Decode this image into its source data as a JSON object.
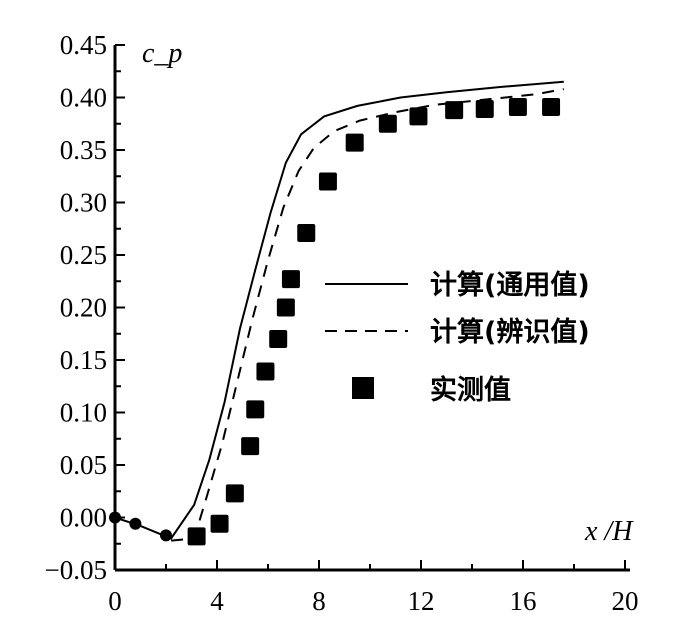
{
  "chart_data": {
    "type": "line",
    "title": "",
    "xlabel": "x /H",
    "ylabel": "c_p",
    "xlim": [
      0,
      20
    ],
    "ylim": [
      -0.05,
      0.45
    ],
    "x_ticks": [
      "0",
      "4",
      "8",
      "12",
      "16",
      "20"
    ],
    "y_ticks": [
      "0.45",
      "0.40",
      "0.35",
      "0.30",
      "0.25",
      "0.20",
      "0.15",
      "0.10",
      "0.05",
      "0.00",
      "−0.05"
    ],
    "grid": false,
    "legend_position": "center-right",
    "series": [
      {
        "name": "计算(通用值)",
        "style": "solid",
        "x": [
          0,
          1,
          2.2,
          3.1,
          3.7,
          4.3,
          4.9,
          5.5,
          6.1,
          6.7,
          7.3,
          8.2,
          9.5,
          11.2,
          13,
          15.1,
          17.6
        ],
        "y": [
          0,
          -0.008,
          -0.02,
          0.012,
          0.055,
          0.11,
          0.18,
          0.236,
          0.29,
          0.338,
          0.365,
          0.382,
          0.392,
          0.4,
          0.405,
          0.41,
          0.415
        ]
      },
      {
        "name": "计算(辨识值)",
        "style": "dashed",
        "x": [
          2.2,
          3.1,
          3.6,
          4.2,
          4.8,
          5.4,
          6.0,
          6.6,
          7.2,
          7.8,
          8.6,
          9.6,
          11,
          12.5,
          14.5,
          16.5,
          17.6
        ],
        "y": [
          -0.022,
          -0.02,
          0.02,
          0.07,
          0.13,
          0.19,
          0.245,
          0.295,
          0.33,
          0.352,
          0.368,
          0.378,
          0.386,
          0.393,
          0.398,
          0.403,
          0.408
        ]
      },
      {
        "name": "实测值",
        "style": "markers",
        "x": [
          0,
          0.8,
          2.0,
          3.2,
          4.1,
          4.7,
          5.3,
          5.5,
          5.9,
          6.4,
          6.7,
          6.9,
          7.5,
          8.35,
          9.4,
          10.7,
          11.9,
          13.3,
          14.5,
          15.8,
          17.1
        ],
        "y": [
          0,
          -0.006,
          -0.017,
          -0.018,
          -0.006,
          0.023,
          0.068,
          0.103,
          0.139,
          0.17,
          0.2,
          0.227,
          0.271,
          0.32,
          0.357,
          0.375,
          0.382,
          0.388,
          0.389,
          0.391,
          0.391
        ]
      }
    ]
  }
}
